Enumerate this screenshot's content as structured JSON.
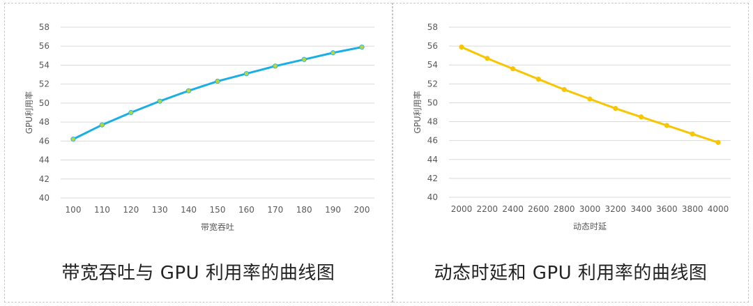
{
  "chart_data": [
    {
      "type": "line",
      "xlabel": "带宽吞吐",
      "ylabel": "GPU利用率",
      "x": [
        100,
        110,
        120,
        130,
        140,
        150,
        160,
        170,
        180,
        190,
        200
      ],
      "series": [
        {
          "values": [
            46.2,
            47.7,
            49.0,
            50.2,
            51.3,
            52.3,
            53.1,
            53.9,
            54.6,
            55.3,
            55.9
          ]
        }
      ],
      "ylim": [
        40,
        58
      ],
      "yticks": [
        40,
        42,
        44,
        46,
        48,
        50,
        52,
        54,
        56,
        58
      ],
      "grid": true,
      "line_color": "#1aaee6",
      "marker_color": "#b8d53a",
      "caption": "带宽吞吐与 GPU 利用率的曲线图"
    },
    {
      "type": "line",
      "xlabel": "动态时延",
      "ylabel": "GPU利用率",
      "x": [
        2000,
        2200,
        2400,
        2600,
        2800,
        3000,
        3200,
        3400,
        3600,
        3800,
        4000
      ],
      "series": [
        {
          "values": [
            55.9,
            54.7,
            53.6,
            52.5,
            51.4,
            50.4,
            49.4,
            48.5,
            47.6,
            46.7,
            45.8
          ]
        }
      ],
      "ylim": [
        40,
        58
      ],
      "yticks": [
        40,
        42,
        44,
        46,
        48,
        50,
        52,
        54,
        56,
        58
      ],
      "grid": true,
      "line_color": "#f7c600",
      "marker_color": "#f7c600",
      "caption": "动态时延和 GPU 利用率的曲线图"
    }
  ]
}
